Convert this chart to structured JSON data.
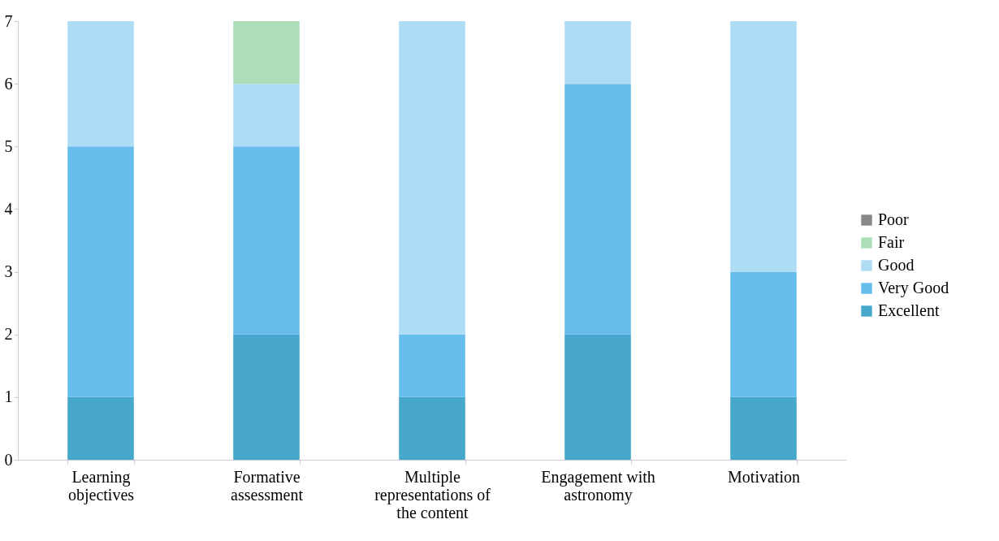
{
  "chart_data": {
    "type": "bar",
    "stacked": true,
    "categories": [
      "Learning objectives",
      "Formative assessment",
      "Multiple representations of the content",
      "Engagement with astronomy",
      "Motivation"
    ],
    "series": [
      {
        "name": "Excellent",
        "color": "#48a7cc",
        "values": [
          1,
          2,
          1,
          2,
          1
        ]
      },
      {
        "name": "Very Good",
        "color": "#66bdec",
        "values": [
          4,
          3,
          1,
          4,
          2
        ]
      },
      {
        "name": "Good",
        "color": "#aedcf5",
        "values": [
          2,
          1,
          5,
          1,
          4
        ]
      },
      {
        "name": "Fair",
        "color": "#acdfb7",
        "values": [
          0,
          1,
          0,
          0,
          0
        ]
      },
      {
        "name": "Poor",
        "color": "#888888",
        "values": [
          0,
          0,
          0,
          0,
          0
        ]
      }
    ],
    "ylim": [
      0,
      7
    ],
    "yticks": [
      0,
      1,
      2,
      3,
      4,
      5,
      6,
      7
    ],
    "grid": false,
    "legend": "right"
  }
}
